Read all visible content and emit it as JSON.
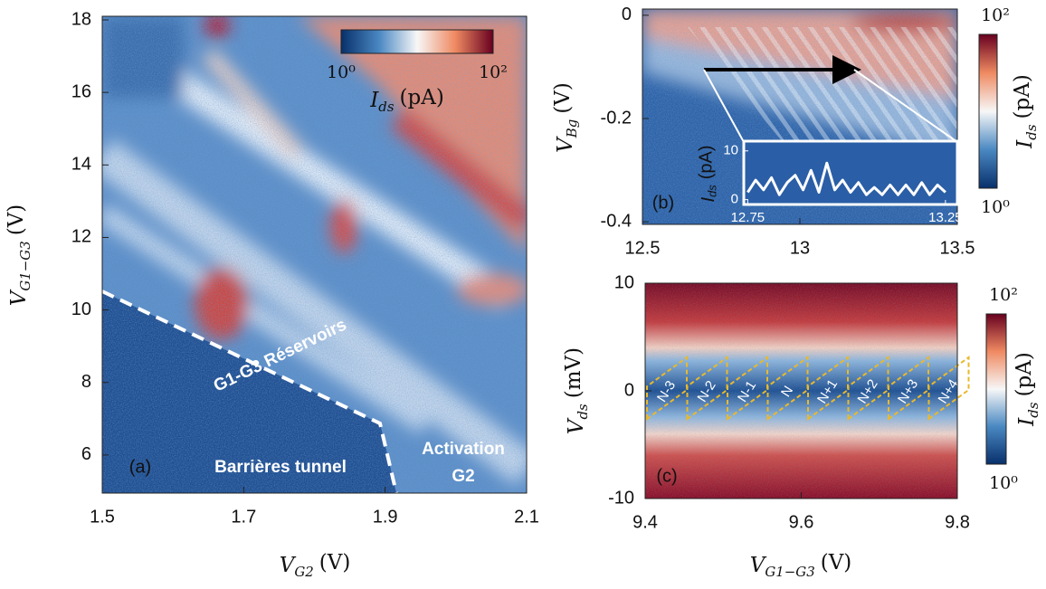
{
  "chart_data": [
    {
      "type": "heatmap",
      "panel_label": "(a)",
      "x_label": {
        "symbol": "V",
        "sub": "G2",
        "unit": "(V)"
      },
      "y_label": {
        "symbol": "V",
        "sub": "G1−G3",
        "unit": "(V)"
      },
      "xlim": [
        1.5,
        2.1
      ],
      "xticks": [
        1.5,
        1.7,
        1.9,
        2.1
      ],
      "ylim": [
        4.95,
        18.1
      ],
      "yticks": [
        6,
        8,
        10,
        12,
        14,
        16,
        18
      ],
      "colorbar": {
        "orientation": "horizontal",
        "log": true,
        "lim": [
          1,
          100
        ],
        "ticks": [
          {
            "value": 1,
            "label": "10⁰"
          },
          {
            "value": 100,
            "label": "10²"
          }
        ],
        "label": {
          "symbol": "I",
          "sub": "ds",
          "unit": "(pA)"
        }
      },
      "annotations": [
        "G1-G3 Réservoirs",
        "Barrières tunnel",
        "Activation",
        "G2"
      ]
    },
    {
      "type": "heatmap",
      "panel_label": "(b)",
      "y_label": {
        "symbol": "V",
        "sub": "Bg",
        "unit": "(V)"
      },
      "xlim": [
        12.5,
        13.5
      ],
      "xticks": [
        12.5,
        13,
        13.5
      ],
      "ylim": [
        -0.405,
        0.012
      ],
      "yticks": [
        -0.4,
        -0.2,
        0
      ],
      "colorbar": {
        "orientation": "vertical",
        "log": true,
        "lim": [
          1,
          100
        ],
        "ticks": [
          {
            "value": 1,
            "label": "10⁰"
          },
          {
            "value": 100,
            "label": "10²"
          }
        ],
        "label": {
          "symbol": "I",
          "sub": "ds",
          "unit": "(pA)"
        }
      },
      "inset": {
        "type": "line",
        "color": "#ffffff",
        "y_label": {
          "symbol": "I",
          "sub": "ds",
          "unit": "(pA)"
        },
        "x": [
          12.75,
          12.77,
          12.79,
          12.81,
          12.83,
          12.85,
          12.87,
          12.89,
          12.91,
          12.93,
          12.95,
          12.97,
          12.99,
          13.01,
          13.03,
          13.05,
          13.07,
          13.09,
          13.11,
          13.13,
          13.15,
          13.17,
          13.19,
          13.21,
          13.23,
          13.25
        ],
        "values": [
          1.5,
          4,
          2,
          4.5,
          1,
          3.5,
          5,
          2,
          6,
          1.5,
          7.5,
          2,
          4,
          1.5,
          3.5,
          1,
          2.5,
          1,
          3,
          1,
          3,
          1,
          3.5,
          1,
          3,
          1.5
        ],
        "xlim": [
          12.74,
          13.28
        ],
        "xticks": [
          12.75,
          13.25
        ],
        "ylim": [
          -1,
          12
        ],
        "yticks": [
          0,
          10
        ]
      }
    },
    {
      "type": "heatmap",
      "panel_label": "(c)",
      "x_label": {
        "symbol": "V",
        "sub": "G1−G3",
        "unit": "(V)"
      },
      "y_label": {
        "symbol": "V",
        "sub": "ds",
        "unit": "(mV)"
      },
      "xlim": [
        9.4,
        9.8
      ],
      "xticks": [
        9.4,
        9.6,
        9.8
      ],
      "ylim": [
        -10,
        10
      ],
      "yticks": [
        -10,
        0,
        10
      ],
      "colorbar": {
        "orientation": "vertical",
        "log": true,
        "lim": [
          1,
          100
        ],
        "ticks": [
          {
            "value": 1,
            "label": "10⁰"
          },
          {
            "value": 100,
            "label": "10²"
          }
        ],
        "label": {
          "symbol": "I",
          "sub": "ds",
          "unit": "(pA)"
        }
      },
      "diamond_labels": [
        "N-3",
        "N-2",
        "N-1",
        "N",
        "N+1",
        "N+2",
        "N+3",
        "N+4"
      ]
    }
  ]
}
